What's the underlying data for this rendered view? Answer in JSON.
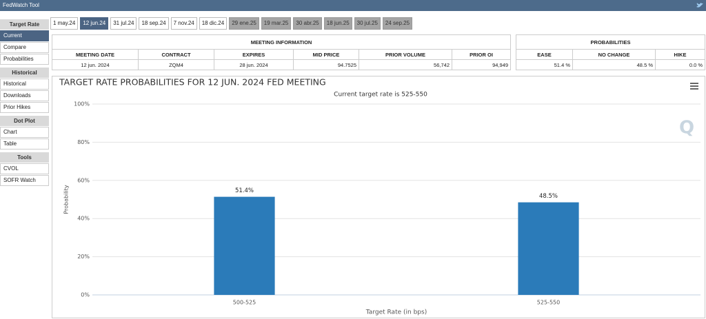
{
  "header": {
    "title": "FedWatch Tool"
  },
  "sidebar": [
    {
      "title": "Target Rate",
      "items": [
        {
          "label": "Current",
          "active": true
        },
        {
          "label": "Compare"
        },
        {
          "label": "Probabilities"
        }
      ]
    },
    {
      "title": "Historical",
      "items": [
        {
          "label": "Historical"
        },
        {
          "label": "Downloads"
        },
        {
          "label": "Prior Hikes"
        }
      ]
    },
    {
      "title": "Dot Plot",
      "items": [
        {
          "label": "Chart"
        },
        {
          "label": "Table"
        }
      ]
    },
    {
      "title": "Tools",
      "items": [
        {
          "label": "CVOL"
        },
        {
          "label": "SOFR Watch"
        }
      ]
    }
  ],
  "tabs": [
    {
      "label": "1 may.24"
    },
    {
      "label": "12 jun.24",
      "state": "active"
    },
    {
      "label": "31 jul.24"
    },
    {
      "label": "18 sep.24"
    },
    {
      "label": "7 nov.24"
    },
    {
      "label": "18 dic.24"
    },
    {
      "label": "29 ene.25",
      "state": "future"
    },
    {
      "label": "19 mar.25",
      "state": "future"
    },
    {
      "label": "30 abr.25",
      "state": "future"
    },
    {
      "label": "18 jun.25",
      "state": "future"
    },
    {
      "label": "30 jul.25",
      "state": "future"
    },
    {
      "label": "24 sep.25",
      "state": "future"
    }
  ],
  "meeting_info": {
    "title": "MEETING INFORMATION",
    "columns": [
      "MEETING DATE",
      "CONTRACT",
      "EXPIRES",
      "MID PRICE",
      "PRIOR VOLUME",
      "PRIOR OI"
    ],
    "row": [
      "12 jun. 2024",
      "ZQM4",
      "28 jun. 2024",
      "94.7525",
      "56,742",
      "94,949"
    ]
  },
  "probabilities": {
    "title": "PROBABILITIES",
    "columns": [
      "EASE",
      "NO CHANGE",
      "HIKE"
    ],
    "row": [
      "51.4 %",
      "48.5 %",
      "0.0 %"
    ]
  },
  "chart_data": {
    "type": "bar",
    "title": "TARGET RATE PROBABILITIES FOR 12 JUN. 2024 FED MEETING",
    "subtitle": "Current target rate is 525-550",
    "x_label": "Target Rate (in bps)",
    "y_label": "Probability",
    "categories": [
      "500-525",
      "525-550"
    ],
    "values": [
      51.4,
      48.5
    ],
    "value_labels": [
      "51.4%",
      "48.5%"
    ],
    "color": "#2b7bb9",
    "ylim": [
      0,
      100
    ],
    "yticks": [
      {
        "value": 0,
        "label": "0%"
      },
      {
        "value": 20,
        "label": "20%"
      },
      {
        "value": 40,
        "label": "40%"
      },
      {
        "value": 60,
        "label": "60%"
      },
      {
        "value": 80,
        "label": "80%"
      },
      {
        "value": 100,
        "label": "100%"
      }
    ],
    "grid": true
  }
}
